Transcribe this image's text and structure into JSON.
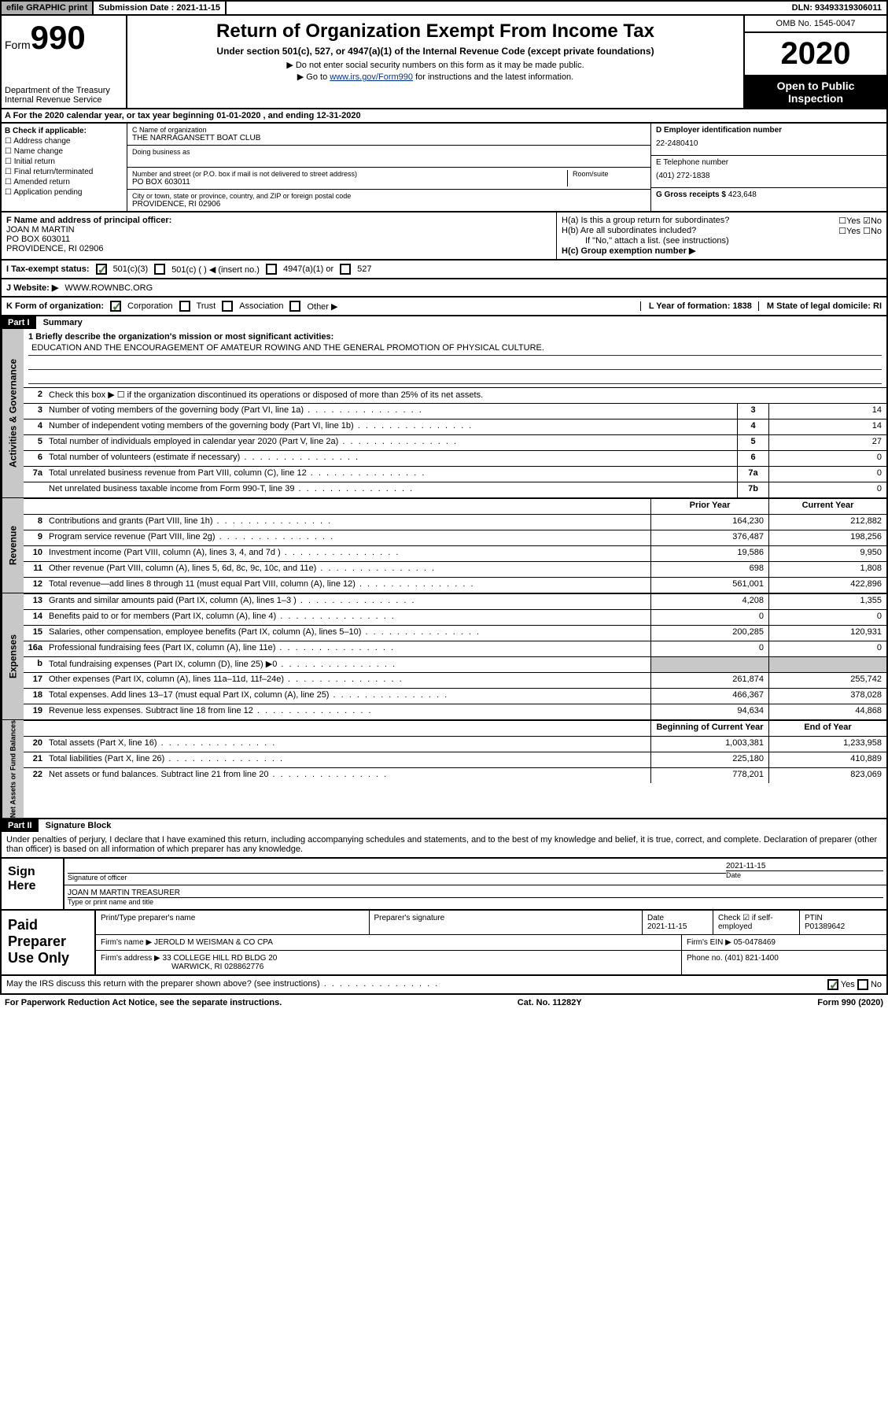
{
  "topbar": {
    "efile": "efile GRAPHIC print",
    "submission_label": "Submission Date : 2021-11-15",
    "dln": "DLN: 93493319306011"
  },
  "header": {
    "form_prefix": "Form",
    "form_number": "990",
    "title": "Return of Organization Exempt From Income Tax",
    "subtitle": "Under section 501(c), 527, or 4947(a)(1) of the Internal Revenue Code (except private foundations)",
    "note1": "▶ Do not enter social security numbers on this form as it may be made public.",
    "note2_pre": "▶ Go to ",
    "note2_link": "www.irs.gov/Form990",
    "note2_post": " for instructions and the latest information.",
    "dept": "Department of the Treasury\nInternal Revenue Service",
    "omb": "OMB No. 1545-0047",
    "year": "2020",
    "otp": "Open to Public Inspection"
  },
  "rowA": "A For the 2020 calendar year, or tax year beginning 01-01-2020    , and ending 12-31-2020",
  "boxB": {
    "label": "B Check if applicable:",
    "items": [
      "Address change",
      "Name change",
      "Initial return",
      "Final return/terminated",
      "Amended return",
      "Application pending"
    ]
  },
  "boxC": {
    "name_label": "C Name of organization",
    "name": "THE NARRAGANSETT BOAT CLUB",
    "dba_label": "Doing business as",
    "addr_label": "Number and street (or P.O. box if mail is not delivered to street address)",
    "room_label": "Room/suite",
    "addr": "PO BOX 603011",
    "city_label": "City or town, state or province, country, and ZIP or foreign postal code",
    "city": "PROVIDENCE, RI  02906"
  },
  "boxD": {
    "label": "D Employer identification number",
    "value": "22-2480410"
  },
  "boxE": {
    "label": "E Telephone number",
    "value": "(401) 272-1838"
  },
  "boxG": {
    "label": "G Gross receipts $",
    "value": "423,648"
  },
  "boxF": {
    "label": "F Name and address of principal officer:",
    "name": "JOAN M MARTIN",
    "addr1": "PO BOX 603011",
    "addr2": "PROVIDENCE, RI  02906"
  },
  "boxH": {
    "a": "H(a)  Is this a group return for subordinates?",
    "b": "H(b)  Are all subordinates included?",
    "bnote": "If \"No,\" attach a list. (see instructions)",
    "c": "H(c)  Group exemption number ▶"
  },
  "status": {
    "label": "I   Tax-exempt status:",
    "c3": "501(c)(3)",
    "c": "501(c) (   ) ◀ (insert no.)",
    "a1": "4947(a)(1) or",
    "s527": "527"
  },
  "website": {
    "label": "J   Website: ▶",
    "value": "WWW.ROWNBC.ORG"
  },
  "korg": {
    "label": "K Form of organization:",
    "corp": "Corporation",
    "trust": "Trust",
    "assoc": "Association",
    "other": "Other ▶",
    "L": "L Year of formation: 1838",
    "M": "M State of legal domicile: RI"
  },
  "part1": {
    "hdr": "Part I",
    "title": "Summary"
  },
  "vtabs": {
    "gov": "Activities & Governance",
    "rev": "Revenue",
    "exp": "Expenses",
    "net": "Net Assets or Fund Balances"
  },
  "mission": {
    "label": "1  Briefly describe the organization's mission or most significant activities:",
    "text": "EDUCATION AND THE ENCOURAGEMENT OF AMATEUR ROWING AND THE GENERAL PROMOTION OF PHYSICAL CULTURE."
  },
  "line2": "Check this box ▶ ☐  if the organization discontinued its operations or disposed of more than 25% of its net assets.",
  "lines_gov": [
    {
      "n": "3",
      "d": "Number of voting members of the governing body (Part VI, line 1a)",
      "b": "3",
      "v": "14"
    },
    {
      "n": "4",
      "d": "Number of independent voting members of the governing body (Part VI, line 1b)",
      "b": "4",
      "v": "14"
    },
    {
      "n": "5",
      "d": "Total number of individuals employed in calendar year 2020 (Part V, line 2a)",
      "b": "5",
      "v": "27"
    },
    {
      "n": "6",
      "d": "Total number of volunteers (estimate if necessary)",
      "b": "6",
      "v": "0"
    },
    {
      "n": "7a",
      "d": "Total unrelated business revenue from Part VIII, column (C), line 12",
      "b": "7a",
      "v": "0"
    },
    {
      "n": "",
      "d": "Net unrelated business taxable income from Form 990-T, line 39",
      "b": "7b",
      "v": "0"
    }
  ],
  "col_hdrs": {
    "prior": "Prior Year",
    "current": "Current Year",
    "beg": "Beginning of Current Year",
    "end": "End of Year"
  },
  "lines_rev": [
    {
      "n": "8",
      "d": "Contributions and grants (Part VIII, line 1h)",
      "p": "164,230",
      "c": "212,882"
    },
    {
      "n": "9",
      "d": "Program service revenue (Part VIII, line 2g)",
      "p": "376,487",
      "c": "198,256"
    },
    {
      "n": "10",
      "d": "Investment income (Part VIII, column (A), lines 3, 4, and 7d )",
      "p": "19,586",
      "c": "9,950"
    },
    {
      "n": "11",
      "d": "Other revenue (Part VIII, column (A), lines 5, 6d, 8c, 9c, 10c, and 11e)",
      "p": "698",
      "c": "1,808"
    },
    {
      "n": "12",
      "d": "Total revenue—add lines 8 through 11 (must equal Part VIII, column (A), line 12)",
      "p": "561,001",
      "c": "422,896"
    }
  ],
  "lines_exp": [
    {
      "n": "13",
      "d": "Grants and similar amounts paid (Part IX, column (A), lines 1–3 )",
      "p": "4,208",
      "c": "1,355"
    },
    {
      "n": "14",
      "d": "Benefits paid to or for members (Part IX, column (A), line 4)",
      "p": "0",
      "c": "0"
    },
    {
      "n": "15",
      "d": "Salaries, other compensation, employee benefits (Part IX, column (A), lines 5–10)",
      "p": "200,285",
      "c": "120,931"
    },
    {
      "n": "16a",
      "d": "Professional fundraising fees (Part IX, column (A), line 11e)",
      "p": "0",
      "c": "0"
    },
    {
      "n": "b",
      "d": "Total fundraising expenses (Part IX, column (D), line 25) ▶0",
      "p": "",
      "c": "",
      "shade": true
    },
    {
      "n": "17",
      "d": "Other expenses (Part IX, column (A), lines 11a–11d, 11f–24e)",
      "p": "261,874",
      "c": "255,742"
    },
    {
      "n": "18",
      "d": "Total expenses. Add lines 13–17 (must equal Part IX, column (A), line 25)",
      "p": "466,367",
      "c": "378,028"
    },
    {
      "n": "19",
      "d": "Revenue less expenses. Subtract line 18 from line 12",
      "p": "94,634",
      "c": "44,868"
    }
  ],
  "lines_net": [
    {
      "n": "20",
      "d": "Total assets (Part X, line 16)",
      "p": "1,003,381",
      "c": "1,233,958"
    },
    {
      "n": "21",
      "d": "Total liabilities (Part X, line 26)",
      "p": "225,180",
      "c": "410,889"
    },
    {
      "n": "22",
      "d": "Net assets or fund balances. Subtract line 21 from line 20",
      "p": "778,201",
      "c": "823,069"
    }
  ],
  "part2": {
    "hdr": "Part II",
    "title": "Signature Block"
  },
  "penalty": "Under penalties of perjury, I declare that I have examined this return, including accompanying schedules and statements, and to the best of my knowledge and belief, it is true, correct, and complete. Declaration of preparer (other than officer) is based on all information of which preparer has any knowledge.",
  "sign": {
    "left": "Sign Here",
    "sig_label": "Signature of officer",
    "date": "2021-11-15",
    "date_label": "Date",
    "name": "JOAN M MARTIN  TREASURER",
    "name_label": "Type or print name and title"
  },
  "prep": {
    "left": "Paid Preparer Use Only",
    "h1": "Print/Type preparer's name",
    "h2": "Preparer's signature",
    "h3": "Date",
    "h3v": "2021-11-15",
    "h4": "Check ☑ if self-employed",
    "h5": "PTIN",
    "h5v": "P01389642",
    "firm_label": "Firm's name    ▶",
    "firm": "JEROLD M WEISMAN & CO CPA",
    "ein_label": "Firm's EIN ▶",
    "ein": "05-0478469",
    "addr_label": "Firm's address ▶",
    "addr1": "33 COLLEGE HILL RD BLDG 20",
    "addr2": "WARWICK, RI  028862776",
    "phone_label": "Phone no.",
    "phone": "(401) 821-1400"
  },
  "discuss": "May the IRS discuss this return with the preparer shown above? (see instructions)",
  "footer": {
    "pra": "For Paperwork Reduction Act Notice, see the separate instructions.",
    "cat": "Cat. No. 11282Y",
    "form": "Form 990 (2020)"
  },
  "yes": "Yes",
  "no": "No"
}
